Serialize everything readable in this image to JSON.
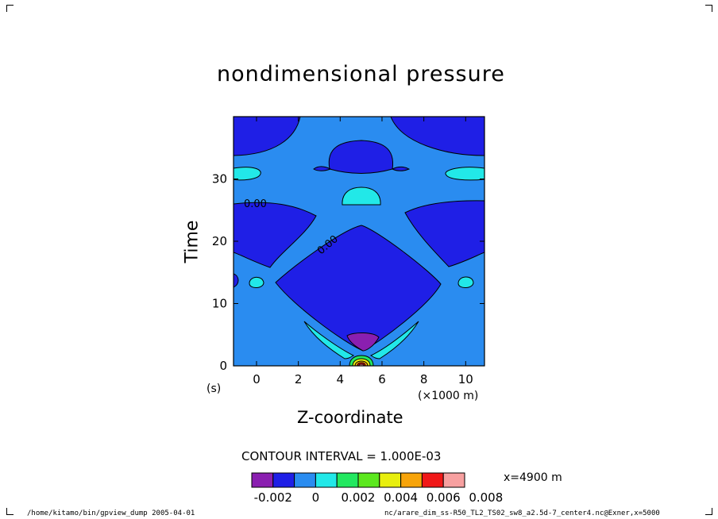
{
  "chart_data": {
    "type": "heatmap",
    "title": "nondimensional pressure",
    "xlabel": "Z-coordinate",
    "ylabel": "Time",
    "x_unit_label": "(×1000 m)",
    "y_unit_label": "(s)",
    "xlim": [
      -1.1,
      10.9
    ],
    "ylim": [
      0,
      40
    ],
    "x_ticks": [
      0,
      2,
      4,
      6,
      8,
      10
    ],
    "y_ticks": [
      0,
      10,
      20,
      30
    ],
    "contour_interval_text": "CONTOUR INTERVAL = 1.000E-03",
    "contour_labels": [
      "0.00",
      "0.00"
    ],
    "colorbar": {
      "levels": [
        -0.003,
        -0.002,
        -0.001,
        0,
        0.001,
        0.002,
        0.003,
        0.004,
        0.005,
        0.006,
        0.007,
        0.008
      ],
      "colors": [
        "#8a1fb0",
        "#1f1fe6",
        "#2a8cf0",
        "#22e8e8",
        "#22e860",
        "#5ce81e",
        "#e8ef0e",
        "#f7a40a",
        "#f01818",
        "#f7a0a0"
      ],
      "tick_labels": [
        "-0.002",
        "0",
        "0.002",
        "0.004",
        "0.006",
        "0.008"
      ]
    },
    "grid": false,
    "legend": "bottom"
  },
  "annotation_right": "x=4900 m",
  "footer_left": "/home/kitamo/bin/gpview_dump  2005-04-01",
  "footer_right": "nc/arare_dim_ss-R50_TL2_TS02_sw8_a2.5d-7_center4.nc@Exner,x=5000"
}
